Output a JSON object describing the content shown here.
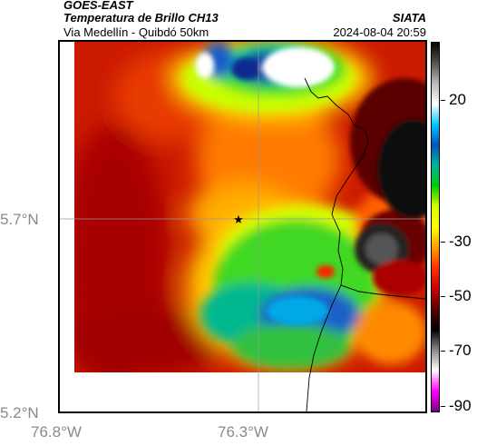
{
  "header": {
    "satellite": "GOES-EAST",
    "product": "Temperatura de Brillo CH13",
    "location": "Via Medellín - Quibdó 50km",
    "organization": "SIATA",
    "datetime": "2024-08-04 20:59"
  },
  "axes": {
    "lat_labels": [
      "5.7°N",
      "5.2°N"
    ],
    "lon_labels": [
      "76.8°W",
      "76.3°W"
    ]
  },
  "colorbar": {
    "labels": [
      "20",
      "-30",
      "-50",
      "-70",
      "-90"
    ],
    "colors": [
      "#000000",
      "#555555",
      "#bbbbbb",
      "#ffffff",
      "#00c8ff",
      "#0055c0",
      "#00b4a0",
      "#00cc00",
      "#d8ff00",
      "#ffff00",
      "#ffa000",
      "#ff3000",
      "#cc0000",
      "#5a0000",
      "#000000",
      "#888888",
      "#ffffff",
      "#ff00ff",
      "#800080"
    ]
  },
  "map": {
    "marker_icon": "star-icon"
  }
}
